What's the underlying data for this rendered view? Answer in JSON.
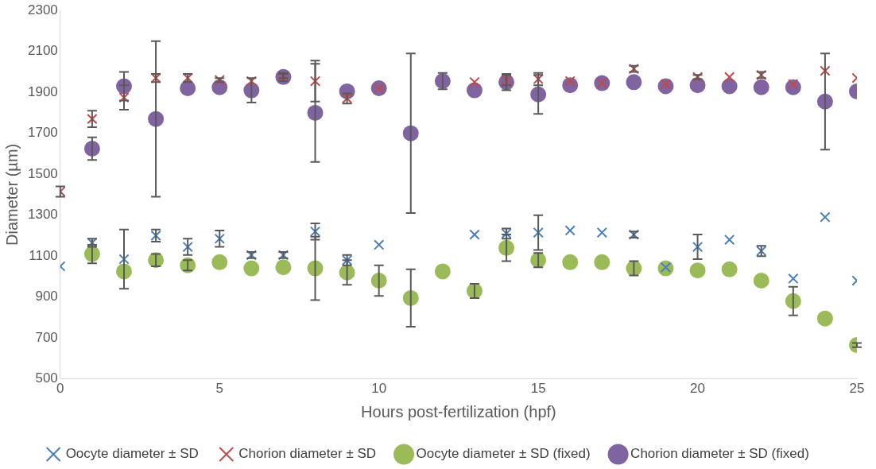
{
  "chart_data": {
    "type": "scatter",
    "xlabel": "Hours post-fertilization (hpf)",
    "ylabel": "Diameter (µm)",
    "x": [
      0,
      1,
      2,
      3,
      4,
      5,
      6,
      7,
      8,
      9,
      10,
      11,
      12,
      13,
      14,
      15,
      16,
      17,
      18,
      19,
      20,
      21,
      22,
      23,
      24,
      25
    ],
    "xlim": [
      0,
      25
    ],
    "xticks": [
      0,
      5,
      10,
      15,
      20,
      25
    ],
    "ylim": [
      500,
      2300
    ],
    "yticks": [
      500,
      700,
      900,
      1100,
      1300,
      1500,
      1700,
      1900,
      2100,
      2300
    ],
    "grid": false,
    "legend": "bottom",
    "series": [
      {
        "name": "Oocyte diameter ± SD",
        "color": "#4a7ebb",
        "marker": "cross",
        "values": [
          1050,
          1165,
          1085,
          1200,
          1145,
          1185,
          1105,
          1105,
          1220,
          1080,
          1155,
          null,
          null,
          1205,
          1210,
          1215,
          1225,
          1215,
          1205,
          1045,
          1145,
          1180,
          1125,
          990,
          1290,
          980
        ],
        "errors": [
          null,
          20,
          145,
          30,
          40,
          40,
          15,
          15,
          40,
          25,
          null,
          null,
          null,
          null,
          25,
          85,
          null,
          null,
          15,
          null,
          60,
          null,
          25,
          null,
          null,
          null
        ]
      },
      {
        "name": "Chorion diameter ± SD",
        "color": "#be4b48",
        "marker": "cross",
        "values": [
          1415,
          1770,
          1875,
          1970,
          1970,
          1960,
          1955,
          1980,
          1955,
          1870,
          1920,
          null,
          null,
          1950,
          1960,
          1965,
          1955,
          1945,
          2015,
          1940,
          1975,
          1975,
          1985,
          1940,
          2005,
          1970
        ],
        "errors": [
          25,
          40,
          60,
          20,
          20,
          10,
          null,
          10,
          100,
          25,
          null,
          null,
          null,
          null,
          25,
          30,
          null,
          null,
          15,
          null,
          10,
          null,
          15,
          null,
          null,
          null
        ]
      },
      {
        "name": "Oocyte diameter ± SD (fixed)",
        "color": "#9bbb59",
        "marker": "circle",
        "values": [
          null,
          1110,
          1025,
          1080,
          1055,
          1070,
          1040,
          1045,
          1040,
          1020,
          980,
          895,
          1025,
          930,
          1140,
          1080,
          1070,
          1070,
          1040,
          1040,
          1030,
          1035,
          980,
          880,
          795,
          665
        ],
        "errors": [
          null,
          45,
          null,
          30,
          25,
          null,
          null,
          null,
          155,
          60,
          75,
          140,
          null,
          35,
          65,
          35,
          null,
          null,
          35,
          null,
          null,
          null,
          null,
          70,
          null,
          10
        ]
      },
      {
        "name": "Chorion diameter ± SD (fixed)",
        "color": "#8064a2",
        "marker": "circle",
        "values": [
          null,
          1625,
          1930,
          1770,
          1920,
          1925,
          1910,
          1975,
          1800,
          1905,
          1920,
          1700,
          1955,
          1910,
          1950,
          1890,
          1935,
          1945,
          1950,
          1930,
          1935,
          1930,
          1925,
          1925,
          1855,
          1905
        ],
        "errors": [
          null,
          55,
          70,
          380,
          null,
          null,
          60,
          20,
          240,
          null,
          null,
          390,
          40,
          null,
          40,
          95,
          null,
          null,
          null,
          null,
          null,
          null,
          null,
          null,
          235,
          null
        ]
      }
    ]
  }
}
